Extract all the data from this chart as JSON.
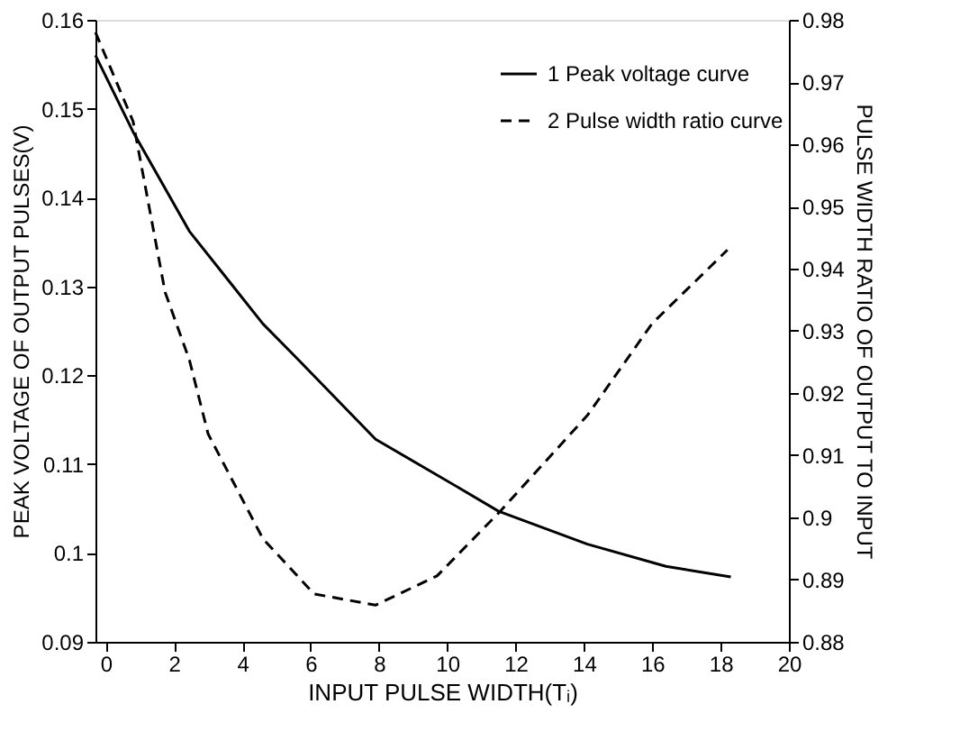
{
  "chart_data": {
    "type": "line",
    "xlabel": "INPUT PULSE WIDTH(Tᵢ)",
    "ylabel": "PEAK VOLTAGE OF OUTPUT PULSES(V)",
    "y2label": "PULSE WIDTH RATIO OF OUTPUT TO INPUT",
    "xlim": [
      -0.3,
      20
    ],
    "xticks": [
      0,
      2,
      4,
      6,
      8,
      10,
      12,
      14,
      16,
      18,
      20
    ],
    "ylim": [
      0.09,
      0.16
    ],
    "yticks": [
      0.09,
      0.1,
      0.11,
      0.12,
      0.13,
      0.14,
      0.15,
      0.16
    ],
    "y2lim": [
      0.88,
      0.98
    ],
    "y2ticks": [
      0.88,
      0.89,
      0.9,
      0.91,
      0.92,
      0.93,
      0.94,
      0.95,
      0.96,
      0.97,
      0.98
    ],
    "grid": false,
    "legend": "top right",
    "marker": "none",
    "series": [
      {
        "name": "1 Peak voltage curve",
        "color": "#000000",
        "line_style": "solid",
        "x": [
          -0.3,
          0.8,
          2.45,
          4.6,
          5.65,
          7.9,
          10.4,
          11.5,
          14.1,
          16.4,
          18.3
        ],
        "values": [
          0.156,
          0.1474,
          0.1362,
          0.1258,
          0.1217,
          0.1128,
          0.1072,
          0.1047,
          0.101,
          0.0985,
          0.0973
        ]
      },
      {
        "name": "2 Pulse width ratio curve",
        "color": "#000000",
        "line_style": "dashed",
        "axis": "y2",
        "x": [
          -0.3,
          0.8,
          1.74,
          2.45,
          3.0,
          4.6,
          6.1,
          7.9,
          9.7,
          11.5,
          14.1,
          16.0,
          18.2
        ],
        "values": [
          0.978,
          0.9637,
          0.9362,
          0.9253,
          0.9134,
          0.8966,
          0.8877,
          0.8859,
          0.8906,
          0.9007,
          0.9164,
          0.9312,
          0.943
        ]
      }
    ]
  }
}
